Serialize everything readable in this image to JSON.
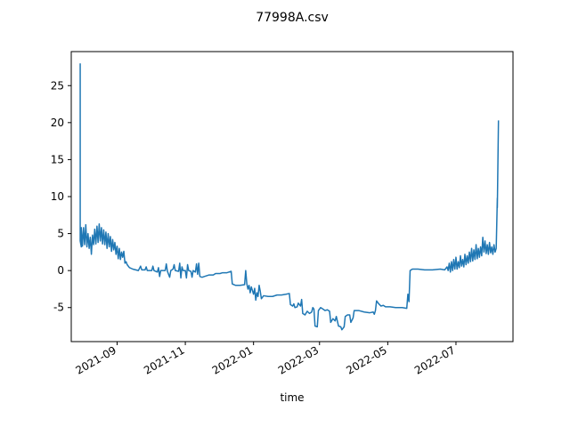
{
  "chart_data": {
    "type": "line",
    "title": "77998A.csv",
    "xlabel": "time",
    "ylabel": "",
    "x_axis": "date",
    "xlim": [
      "2021-07-22",
      "2022-08-21"
    ],
    "ylim": [
      -9.6,
      29.6
    ],
    "grid": false,
    "legend": "none",
    "x_ticks": [
      {
        "date": "2021-09-01",
        "label": "2021-09"
      },
      {
        "date": "2021-11-01",
        "label": "2021-11"
      },
      {
        "date": "2022-01-01",
        "label": "2022-01"
      },
      {
        "date": "2022-03-01",
        "label": "2022-03"
      },
      {
        "date": "2022-05-01",
        "label": "2022-05"
      },
      {
        "date": "2022-07-01",
        "label": "2022-07"
      }
    ],
    "y_ticks": [
      -5,
      0,
      5,
      10,
      15,
      20,
      25
    ],
    "series": [
      {
        "color": "#1f77b4",
        "points": [
          [
            "2021-07-30",
            28.0
          ],
          [
            "2021-07-30",
            4.0
          ],
          [
            "2021-07-31",
            3.2
          ],
          [
            "2021-07-31",
            5.8
          ],
          [
            "2021-08-01",
            3.3
          ],
          [
            "2021-08-02",
            5.8
          ],
          [
            "2021-08-03",
            3.5
          ],
          [
            "2021-08-04",
            6.2
          ],
          [
            "2021-08-05",
            3.2
          ],
          [
            "2021-08-06",
            5.0
          ],
          [
            "2021-08-07",
            3.0
          ],
          [
            "2021-08-08",
            4.5
          ],
          [
            "2021-08-09",
            2.2
          ],
          [
            "2021-08-10",
            4.8
          ],
          [
            "2021-08-11",
            3.5
          ],
          [
            "2021-08-12",
            5.6
          ],
          [
            "2021-08-13",
            3.6
          ],
          [
            "2021-08-14",
            6.0
          ],
          [
            "2021-08-15",
            3.8
          ],
          [
            "2021-08-16",
            6.3
          ],
          [
            "2021-08-17",
            4.0
          ],
          [
            "2021-08-18",
            5.8
          ],
          [
            "2021-08-19",
            3.6
          ],
          [
            "2021-08-20",
            5.5
          ],
          [
            "2021-08-21",
            3.5
          ],
          [
            "2021-08-22",
            5.2
          ],
          [
            "2021-08-23",
            3.0
          ],
          [
            "2021-08-24",
            5.0
          ],
          [
            "2021-08-25",
            3.2
          ],
          [
            "2021-08-26",
            4.6
          ],
          [
            "2021-08-27",
            2.6
          ],
          [
            "2021-08-28",
            4.2
          ],
          [
            "2021-08-29",
            2.8
          ],
          [
            "2021-08-30",
            3.8
          ],
          [
            "2021-08-31",
            2.2
          ],
          [
            "2021-09-01",
            3.3
          ],
          [
            "2021-09-02",
            1.6
          ],
          [
            "2021-09-03",
            3.0
          ],
          [
            "2021-09-04",
            1.5
          ],
          [
            "2021-09-05",
            2.5
          ],
          [
            "2021-09-06",
            1.8
          ],
          [
            "2021-09-07",
            2.6
          ],
          [
            "2021-09-08",
            1.0
          ],
          [
            "2021-09-09",
            1.2
          ],
          [
            "2021-09-10",
            0.8
          ],
          [
            "2021-09-12",
            0.4
          ],
          [
            "2021-09-15",
            0.2
          ],
          [
            "2021-09-20",
            0.0
          ],
          [
            "2021-09-22",
            0.6
          ],
          [
            "2021-09-23",
            0.1
          ],
          [
            "2021-09-26",
            0.1
          ],
          [
            "2021-09-27",
            0.5
          ],
          [
            "2021-09-28",
            0.0
          ],
          [
            "2021-10-02",
            0.0
          ],
          [
            "2021-10-03",
            0.6
          ],
          [
            "2021-10-04",
            0.0
          ],
          [
            "2021-10-07",
            -0.2
          ],
          [
            "2021-10-08",
            0.4
          ],
          [
            "2021-10-09",
            -0.8
          ],
          [
            "2021-10-10",
            0.0
          ],
          [
            "2021-10-14",
            0.0
          ],
          [
            "2021-10-15",
            0.9
          ],
          [
            "2021-10-16",
            -0.1
          ],
          [
            "2021-10-18",
            -0.9
          ],
          [
            "2021-10-19",
            0.0
          ],
          [
            "2021-10-21",
            0.2
          ],
          [
            "2021-10-22",
            0.8
          ],
          [
            "2021-10-23",
            0.0
          ],
          [
            "2021-10-26",
            -0.1
          ],
          [
            "2021-10-27",
            1.0
          ],
          [
            "2021-10-28",
            -1.0
          ],
          [
            "2021-10-29",
            0.5
          ],
          [
            "2021-10-30",
            0.0
          ],
          [
            "2021-11-01",
            0.0
          ],
          [
            "2021-11-02",
            -1.0
          ],
          [
            "2021-11-03",
            0.8
          ],
          [
            "2021-11-04",
            0.0
          ],
          [
            "2021-11-06",
            -0.1
          ],
          [
            "2021-11-07",
            -0.9
          ],
          [
            "2021-11-08",
            0.0
          ],
          [
            "2021-11-10",
            -0.2
          ],
          [
            "2021-11-11",
            0.9
          ],
          [
            "2021-11-12",
            -0.5
          ],
          [
            "2021-11-13",
            1.0
          ],
          [
            "2021-11-14",
            -0.8
          ],
          [
            "2021-11-16",
            -0.9
          ],
          [
            "2021-11-18",
            -0.8
          ],
          [
            "2021-11-22",
            -0.6
          ],
          [
            "2021-11-26",
            -0.6
          ],
          [
            "2021-11-28",
            -0.4
          ],
          [
            "2021-12-02",
            -0.4
          ],
          [
            "2021-12-04",
            -0.3
          ],
          [
            "2021-12-08",
            -0.3
          ],
          [
            "2021-12-10",
            -0.2
          ],
          [
            "2021-12-12",
            -0.1
          ],
          [
            "2021-12-13",
            -1.8
          ],
          [
            "2021-12-16",
            -2.0
          ],
          [
            "2021-12-20",
            -2.0
          ],
          [
            "2021-12-24",
            -1.9
          ],
          [
            "2021-12-25",
            0.0
          ],
          [
            "2021-12-26",
            -1.8
          ],
          [
            "2021-12-27",
            -2.5
          ],
          [
            "2021-12-28",
            -2.0
          ],
          [
            "2021-12-29",
            -3.0
          ],
          [
            "2021-12-30",
            -2.2
          ],
          [
            "2022-01-01",
            -3.2
          ],
          [
            "2022-01-02",
            -2.4
          ],
          [
            "2022-01-03",
            -4.0
          ],
          [
            "2022-01-04",
            -3.0
          ],
          [
            "2022-01-05",
            -3.5
          ],
          [
            "2022-01-06",
            -2.0
          ],
          [
            "2022-01-07",
            -2.8
          ],
          [
            "2022-01-08",
            -3.8
          ],
          [
            "2022-01-10",
            -3.4
          ],
          [
            "2022-01-14",
            -3.5
          ],
          [
            "2022-01-18",
            -3.5
          ],
          [
            "2022-01-22",
            -3.3
          ],
          [
            "2022-01-26",
            -3.3
          ],
          [
            "2022-01-30",
            -3.2
          ],
          [
            "2022-02-02",
            -3.1
          ],
          [
            "2022-02-03",
            -4.6
          ],
          [
            "2022-02-05",
            -4.8
          ],
          [
            "2022-02-06",
            -4.5
          ],
          [
            "2022-02-07",
            -5.0
          ],
          [
            "2022-02-09",
            -4.9
          ],
          [
            "2022-02-10",
            -4.4
          ],
          [
            "2022-02-12",
            -4.8
          ],
          [
            "2022-02-13",
            -3.9
          ],
          [
            "2022-02-14",
            -5.8
          ],
          [
            "2022-02-16",
            -6.0
          ],
          [
            "2022-02-18",
            -5.5
          ],
          [
            "2022-02-20",
            -5.8
          ],
          [
            "2022-02-22",
            -5.6
          ],
          [
            "2022-02-23",
            -5.0
          ],
          [
            "2022-02-24",
            -5.2
          ],
          [
            "2022-02-25",
            -7.5
          ],
          [
            "2022-02-27",
            -7.6
          ],
          [
            "2022-02-28",
            -5.4
          ],
          [
            "2022-03-02",
            -5.0
          ],
          [
            "2022-03-04",
            -5.2
          ],
          [
            "2022-03-06",
            -5.4
          ],
          [
            "2022-03-08",
            -5.3
          ],
          [
            "2022-03-10",
            -5.5
          ],
          [
            "2022-03-11",
            -7.0
          ],
          [
            "2022-03-13",
            -6.5
          ],
          [
            "2022-03-15",
            -6.8
          ],
          [
            "2022-03-16",
            -6.2
          ],
          [
            "2022-03-18",
            -7.5
          ],
          [
            "2022-03-20",
            -7.6
          ],
          [
            "2022-03-21",
            -8.0
          ],
          [
            "2022-03-23",
            -7.6
          ],
          [
            "2022-03-24",
            -6.2
          ],
          [
            "2022-03-26",
            -6.0
          ],
          [
            "2022-03-28",
            -6.0
          ],
          [
            "2022-03-29",
            -7.0
          ],
          [
            "2022-03-31",
            -6.4
          ],
          [
            "2022-04-01",
            -5.4
          ],
          [
            "2022-04-05",
            -5.4
          ],
          [
            "2022-04-10",
            -5.6
          ],
          [
            "2022-04-15",
            -5.7
          ],
          [
            "2022-04-18",
            -5.6
          ],
          [
            "2022-04-19",
            -5.9
          ],
          [
            "2022-04-20",
            -5.4
          ],
          [
            "2022-04-21",
            -4.1
          ],
          [
            "2022-04-23",
            -4.5
          ],
          [
            "2022-04-25",
            -4.8
          ],
          [
            "2022-04-27",
            -4.7
          ],
          [
            "2022-04-29",
            -4.9
          ],
          [
            "2022-05-03",
            -4.9
          ],
          [
            "2022-05-08",
            -5.0
          ],
          [
            "2022-05-14",
            -5.0
          ],
          [
            "2022-05-18",
            -5.1
          ],
          [
            "2022-05-19",
            -3.2
          ],
          [
            "2022-05-20",
            -4.2
          ],
          [
            "2022-05-21",
            0.0
          ],
          [
            "2022-05-23",
            0.2
          ],
          [
            "2022-05-28",
            0.2
          ],
          [
            "2022-06-03",
            0.1
          ],
          [
            "2022-06-10",
            0.1
          ],
          [
            "2022-06-17",
            0.2
          ],
          [
            "2022-06-21",
            0.1
          ],
          [
            "2022-06-23",
            0.5
          ],
          [
            "2022-06-24",
            0.0
          ],
          [
            "2022-06-25",
            1.0
          ],
          [
            "2022-06-26",
            -0.2
          ],
          [
            "2022-06-27",
            1.2
          ],
          [
            "2022-06-28",
            0.0
          ],
          [
            "2022-06-29",
            1.5
          ],
          [
            "2022-06-30",
            0.2
          ],
          [
            "2022-07-01",
            1.8
          ],
          [
            "2022-07-02",
            0.2
          ],
          [
            "2022-07-03",
            1.2
          ],
          [
            "2022-07-04",
            0.4
          ],
          [
            "2022-07-05",
            2.0
          ],
          [
            "2022-07-06",
            0.6
          ],
          [
            "2022-07-07",
            1.5
          ],
          [
            "2022-07-08",
            0.5
          ],
          [
            "2022-07-09",
            2.2
          ],
          [
            "2022-07-10",
            0.8
          ],
          [
            "2022-07-11",
            2.0
          ],
          [
            "2022-07-12",
            1.0
          ],
          [
            "2022-07-13",
            2.5
          ],
          [
            "2022-07-14",
            1.2
          ],
          [
            "2022-07-15",
            3.0
          ],
          [
            "2022-07-16",
            1.3
          ],
          [
            "2022-07-17",
            2.8
          ],
          [
            "2022-07-18",
            1.5
          ],
          [
            "2022-07-19",
            3.5
          ],
          [
            "2022-07-20",
            1.6
          ],
          [
            "2022-07-21",
            3.0
          ],
          [
            "2022-07-22",
            1.8
          ],
          [
            "2022-07-23",
            3.2
          ],
          [
            "2022-07-24",
            2.0
          ],
          [
            "2022-07-25",
            4.5
          ],
          [
            "2022-07-26",
            2.5
          ],
          [
            "2022-07-27",
            4.0
          ],
          [
            "2022-07-28",
            2.3
          ],
          [
            "2022-07-29",
            3.5
          ],
          [
            "2022-07-30",
            2.2
          ],
          [
            "2022-07-31",
            3.8
          ],
          [
            "2022-08-01",
            2.4
          ],
          [
            "2022-08-02",
            3.2
          ],
          [
            "2022-08-03",
            2.2
          ],
          [
            "2022-08-04",
            3.5
          ],
          [
            "2022-08-05",
            2.5
          ],
          [
            "2022-08-06",
            3.0
          ],
          [
            "2022-08-07",
            9.8
          ],
          [
            "2022-08-07",
            8.5
          ],
          [
            "2022-08-08",
            20.3
          ]
        ]
      }
    ]
  }
}
